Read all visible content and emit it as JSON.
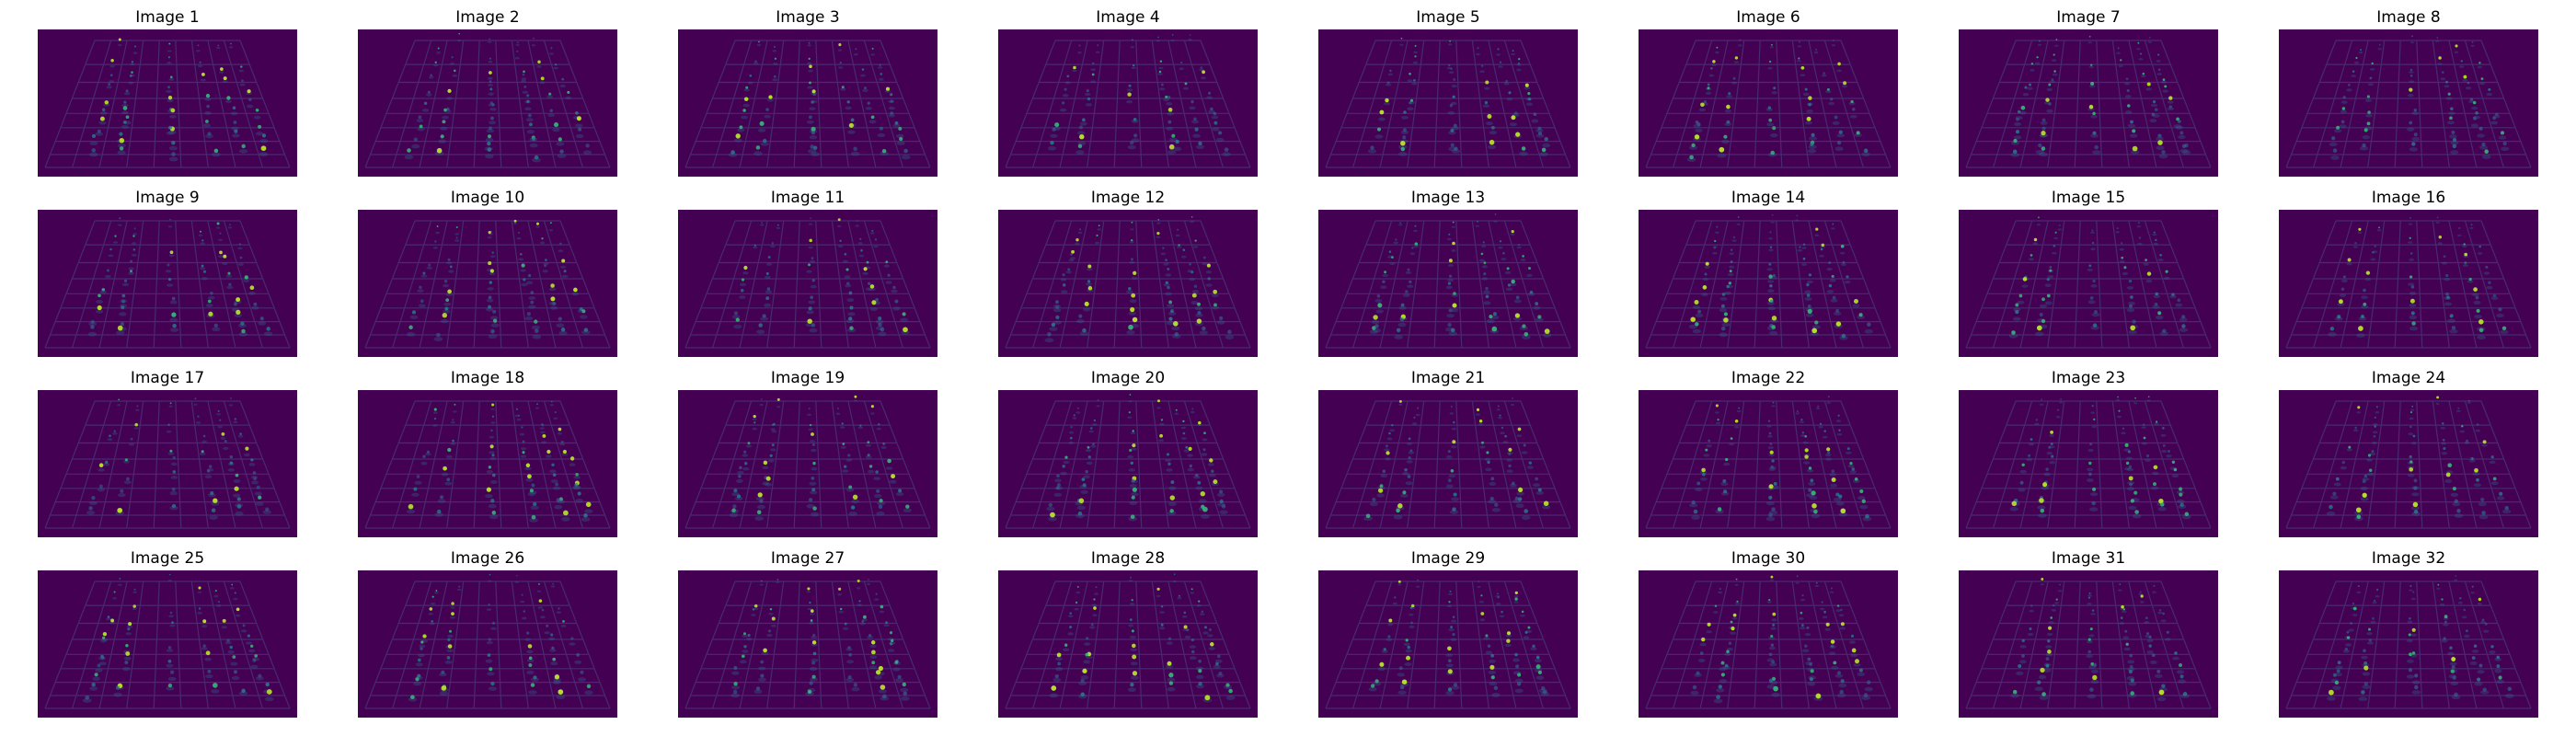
{
  "figure": {
    "title_prefix": "Image",
    "panel_count": 32,
    "colormap": "viridis",
    "colors": {
      "background": "#440154",
      "grid_lines": "#482a6e",
      "dim_points": "#31688e",
      "mid_points": "#26828e",
      "bright_points": "#35b779",
      "brightest_points": "#b5de2b"
    },
    "panels": [
      {
        "title": "Image 1"
      },
      {
        "title": "Image 2"
      },
      {
        "title": "Image 3"
      },
      {
        "title": "Image 4"
      },
      {
        "title": "Image 5"
      },
      {
        "title": "Image 6"
      },
      {
        "title": "Image 7"
      },
      {
        "title": "Image 8"
      },
      {
        "title": "Image 9"
      },
      {
        "title": "Image 10"
      },
      {
        "title": "Image 11"
      },
      {
        "title": "Image 12"
      },
      {
        "title": "Image 13"
      },
      {
        "title": "Image 14"
      },
      {
        "title": "Image 15"
      },
      {
        "title": "Image 16"
      },
      {
        "title": "Image 17"
      },
      {
        "title": "Image 18"
      },
      {
        "title": "Image 19"
      },
      {
        "title": "Image 20"
      },
      {
        "title": "Image 21"
      },
      {
        "title": "Image 22"
      },
      {
        "title": "Image 23"
      },
      {
        "title": "Image 24"
      },
      {
        "title": "Image 25"
      },
      {
        "title": "Image 26"
      },
      {
        "title": "Image 27"
      },
      {
        "title": "Image 28"
      },
      {
        "title": "Image 29"
      },
      {
        "title": "Image 30"
      },
      {
        "title": "Image 31"
      },
      {
        "title": "Image 32"
      }
    ]
  }
}
